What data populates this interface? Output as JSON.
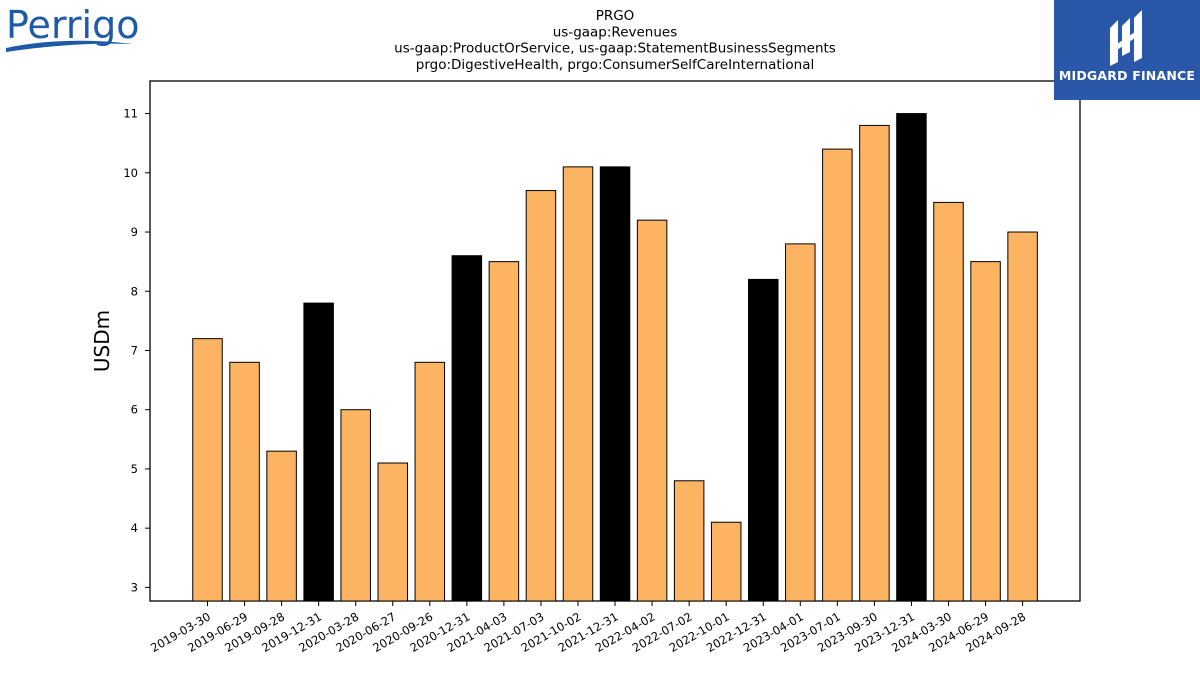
{
  "logos": {
    "left_brand": "Perrigo",
    "right_brand": "MIDGARD FINANCE"
  },
  "colors": {
    "bar_default": "#fdb462",
    "bar_highlight": "#000000",
    "edge": "#000000",
    "logo_left_blue": "#1d5aa7",
    "logo_right_bg": "#2a57a8"
  },
  "chart_data": {
    "type": "bar",
    "title": [
      "PRGO",
      "us-gaap:Revenues",
      "us-gaap:ProductOrService, us-gaap:StatementBusinessSegments",
      "prgo:DigestiveHealth, prgo:ConsumerSelfCareInternational"
    ],
    "ylabel": "USDm",
    "xlabel": "",
    "ylim": [
      2.77,
      11.55
    ],
    "yticks": [
      3,
      4,
      5,
      6,
      7,
      8,
      9,
      10,
      11
    ],
    "grid": false,
    "categories": [
      "2019-03-30",
      "2019-06-29",
      "2019-09-28",
      "2019-12-31",
      "2020-03-28",
      "2020-06-27",
      "2020-09-26",
      "2020-12-31",
      "2021-04-03",
      "2021-07-03",
      "2021-10-02",
      "2021-12-31",
      "2022-04-02",
      "2022-07-02",
      "2022-10-01",
      "2022-12-31",
      "2023-04-01",
      "2023-07-01",
      "2023-09-30",
      "2023-12-31",
      "2024-03-30",
      "2024-06-29",
      "2024-09-28"
    ],
    "values": [
      7.2,
      6.8,
      5.3,
      7.8,
      6.0,
      5.1,
      6.8,
      8.6,
      8.5,
      9.7,
      10.1,
      10.1,
      9.2,
      4.8,
      4.1,
      8.2,
      8.8,
      10.4,
      10.8,
      11.0,
      9.5,
      8.5,
      9.0
    ],
    "highlighted": [
      false,
      false,
      false,
      true,
      false,
      false,
      false,
      true,
      false,
      false,
      false,
      true,
      false,
      false,
      false,
      true,
      false,
      false,
      false,
      true,
      false,
      false,
      false
    ]
  }
}
